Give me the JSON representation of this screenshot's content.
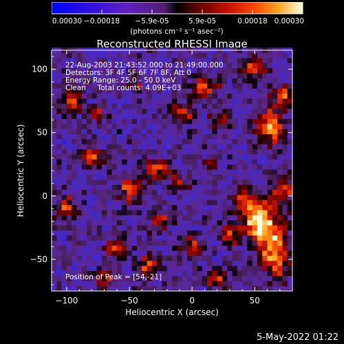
{
  "chart_data": {
    "type": "heatmap",
    "title": "Reconstructed RHESSI Image",
    "xlabel": "Heliocentric X (arcsec)",
    "ylabel": "Heliocentric Y (arcsec)",
    "xlim": [
      -112,
      80
    ],
    "ylim": [
      -75,
      115
    ],
    "x_ticks": [
      -100,
      -50,
      0,
      50
    ],
    "y_ticks": [
      -50,
      0,
      50,
      100
    ],
    "colorbar": {
      "units": "(photons cm⁻² s⁻¹ asec⁻²)",
      "range": [
        -0.0003,
        0.0003
      ],
      "ticks": [
        "-0.00030",
        "-0.00018",
        "-5.9e-05",
        "5.9e-05",
        "0.00018",
        "0.00030"
      ]
    },
    "peak": {
      "x": 54,
      "y": -21
    },
    "sources": [
      {
        "x": 54,
        "y": -21,
        "amp": 1.0,
        "sx": 9,
        "sy": 11
      },
      {
        "x": 66,
        "y": -45,
        "amp": 0.75,
        "sx": 8,
        "sy": 14
      },
      {
        "x": 42,
        "y": -2,
        "amp": 0.6,
        "sx": 7,
        "sy": 7
      },
      {
        "x": 72,
        "y": 5,
        "amp": 0.6,
        "sx": 6,
        "sy": 8
      },
      {
        "x": 62,
        "y": 55,
        "amp": 0.75,
        "sx": 8,
        "sy": 10
      },
      {
        "x": 72,
        "y": 80,
        "amp": 0.55,
        "sx": 6,
        "sy": 6
      },
      {
        "x": 50,
        "y": 100,
        "amp": 0.6,
        "sx": 7,
        "sy": 6
      },
      {
        "x": 10,
        "y": 85,
        "amp": 0.6,
        "sx": 8,
        "sy": 6
      },
      {
        "x": -8,
        "y": 65,
        "amp": 0.55,
        "sx": 7,
        "sy": 6
      },
      {
        "x": 22,
        "y": 60,
        "amp": 0.5,
        "sx": 5,
        "sy": 5
      },
      {
        "x": -28,
        "y": 22,
        "amp": 0.6,
        "sx": 8,
        "sy": 5
      },
      {
        "x": -10,
        "y": 10,
        "amp": 0.45,
        "sx": 6,
        "sy": 5
      },
      {
        "x": -50,
        "y": 5,
        "amp": 0.55,
        "sx": 7,
        "sy": 7
      },
      {
        "x": -80,
        "y": 30,
        "amp": 0.6,
        "sx": 6,
        "sy": 6
      },
      {
        "x": -100,
        "y": -10,
        "amp": 0.55,
        "sx": 6,
        "sy": 8
      },
      {
        "x": -95,
        "y": 75,
        "amp": 0.5,
        "sx": 6,
        "sy": 6
      },
      {
        "x": -75,
        "y": 65,
        "amp": 0.4,
        "sx": 5,
        "sy": 5
      },
      {
        "x": -60,
        "y": -40,
        "amp": 0.5,
        "sx": 7,
        "sy": 6
      },
      {
        "x": -35,
        "y": -55,
        "amp": 0.55,
        "sx": 6,
        "sy": 6
      },
      {
        "x": -25,
        "y": -20,
        "amp": 0.5,
        "sx": 6,
        "sy": 6
      },
      {
        "x": 0,
        "y": -40,
        "amp": 0.45,
        "sx": 6,
        "sy": 6
      },
      {
        "x": 20,
        "y": -65,
        "amp": 0.5,
        "sx": 7,
        "sy": 5
      },
      {
        "x": 30,
        "y": -30,
        "amp": 0.5,
        "sx": 5,
        "sy": 6
      },
      {
        "x": -70,
        "y": -65,
        "amp": 0.45,
        "sx": 5,
        "sy": 5
      },
      {
        "x": 15,
        "y": 25,
        "amp": 0.35,
        "sx": 5,
        "sy": 5
      },
      {
        "x": -45,
        "y": 90,
        "amp": 0.35,
        "sx": 5,
        "sy": 5
      }
    ],
    "pixel_size_arcsec": 4
  },
  "annotations": {
    "line1": "22-Aug-2003 21:43:52.000 to 21:49:00.000",
    "line2": "Detectors: 3F 4F 5F 6F 7F 8F, Att 0",
    "line3": "Energy Range: 25.0 - 50.0 keV",
    "line4": "Clean     Total counts: 4.09E+03",
    "peak_label": "Position of Peak = [54,-21]"
  },
  "footer": {
    "timestamp": "5-May-2022 01:22"
  }
}
